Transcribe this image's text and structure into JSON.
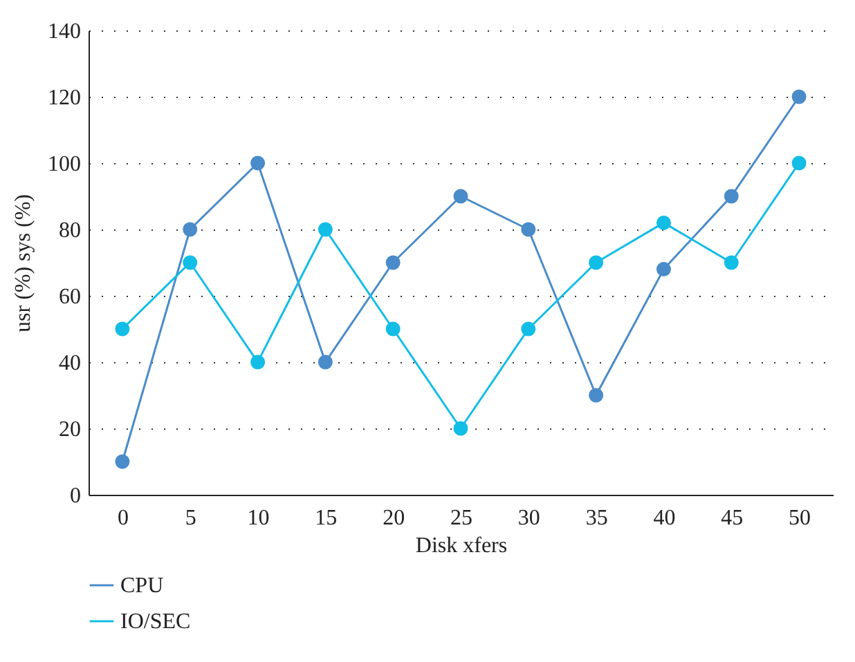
{
  "chart_data": {
    "type": "line",
    "xlabel": "Disk xfers",
    "ylabel": "usr (%) sys (%)",
    "categories": [
      "0",
      "5",
      "10",
      "15",
      "20",
      "25",
      "30",
      "35",
      "40",
      "45",
      "50"
    ],
    "series": [
      {
        "name": "CPU",
        "color": "#4a8bc9",
        "values": [
          10,
          80,
          100,
          40,
          70,
          90,
          80,
          30,
          68,
          90,
          120
        ]
      },
      {
        "name": "IO/SEC",
        "color": "#12bde6",
        "values": [
          50,
          70,
          40,
          80,
          50,
          20,
          50,
          70,
          82,
          70,
          100
        ]
      }
    ],
    "ylim": [
      0,
      140
    ],
    "yticks": [
      0,
      20,
      40,
      60,
      80,
      100,
      120,
      140
    ],
    "grid": "y",
    "legend": "bottom left",
    "marker": "circle",
    "line_style": "solid"
  }
}
